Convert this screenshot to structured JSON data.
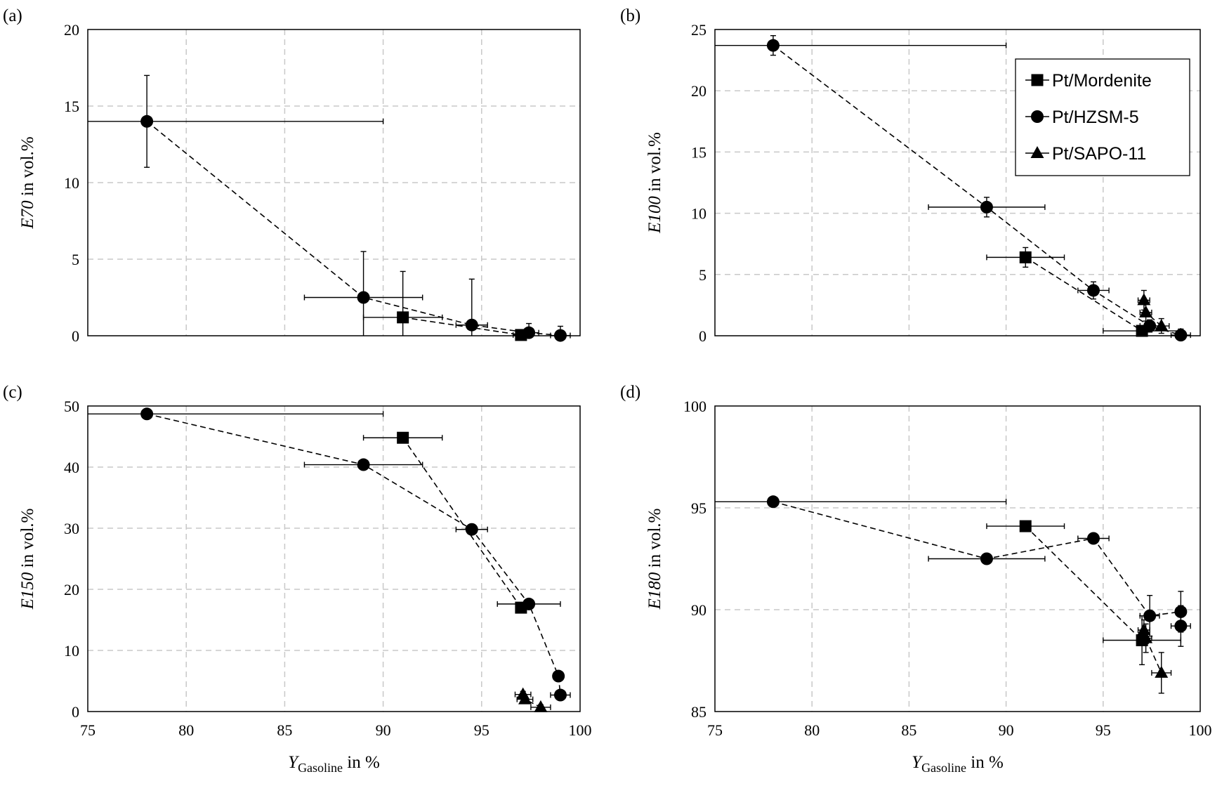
{
  "chart_data": [
    {
      "type": "scatter",
      "panel_label": "(a)",
      "ylabel_italic": "E70",
      "ylabel_rest": " in vol.%",
      "xlabel_main": "",
      "xlabel_sub": "",
      "xlabel_rest": "",
      "xlim": [
        75,
        100
      ],
      "ylim": [
        0,
        20
      ],
      "xticks": [
        75,
        80,
        85,
        90,
        95,
        100
      ],
      "yticks": [
        0,
        5,
        10,
        15,
        20
      ],
      "show_xtick_labels": false,
      "series": [
        {
          "name": "Pt/Mordenite",
          "marker": "square",
          "points": [
            {
              "x": 91,
              "y": 1.2,
              "xerr": 2,
              "yerr": 3
            },
            {
              "x": 97,
              "y": 0.05,
              "xerr": 0.4,
              "yerr": 0
            }
          ]
        },
        {
          "name": "Pt/HZSM-5",
          "marker": "circle",
          "points": [
            {
              "x": 78,
              "y": 14,
              "xerr": 12,
              "yerr": 3
            },
            {
              "x": 89,
              "y": 2.5,
              "xerr": 3,
              "yerr": 3
            },
            {
              "x": 94.5,
              "y": 0.7,
              "xerr": 0.8,
              "yerr": 3
            },
            {
              "x": 97.4,
              "y": 0.2,
              "xerr": 0.5,
              "yerr": 0.6
            },
            {
              "x": 99,
              "y": 0.02,
              "xerr": 0.5,
              "yerr": 0.6
            }
          ]
        },
        {
          "name": "Pt/SAPO-11",
          "marker": "triangle",
          "points": []
        }
      ]
    },
    {
      "type": "scatter",
      "panel_label": "(b)",
      "ylabel_italic": "E100",
      "ylabel_rest": " in vol.%",
      "xlabel_main": "",
      "xlabel_sub": "",
      "xlabel_rest": "",
      "xlim": [
        75,
        100
      ],
      "ylim": [
        0,
        25
      ],
      "xticks": [
        75,
        80,
        85,
        90,
        95,
        100
      ],
      "yticks": [
        0,
        5,
        10,
        15,
        20,
        25
      ],
      "show_xtick_labels": false,
      "legend": {
        "entries": [
          "Pt/Mordenite",
          "Pt/HZSM-5",
          "Pt/SAPO-11"
        ],
        "position": "top-right"
      },
      "series": [
        {
          "name": "Pt/Mordenite",
          "marker": "square",
          "points": [
            {
              "x": 91,
              "y": 6.4,
              "xerr": 2,
              "yerr": 0.8
            },
            {
              "x": 97,
              "y": 0.4,
              "xerr": 2,
              "yerr": 0.3
            }
          ]
        },
        {
          "name": "Pt/HZSM-5",
          "marker": "circle",
          "points": [
            {
              "x": 78,
              "y": 23.7,
              "xerr": 12,
              "yerr": 0.8
            },
            {
              "x": 89,
              "y": 10.5,
              "xerr": 3,
              "yerr": 0.8
            },
            {
              "x": 94.5,
              "y": 3.7,
              "xerr": 0.8,
              "yerr": 0.7
            },
            {
              "x": 97.4,
              "y": 0.8,
              "xerr": 0.5,
              "yerr": 0.5
            },
            {
              "x": 99,
              "y": 0.05,
              "xerr": 0.5,
              "yerr": 0.5
            }
          ]
        },
        {
          "name": "Pt/SAPO-11",
          "marker": "triangle",
          "points": [
            {
              "x": 97.1,
              "y": 2.9,
              "xerr": 0.3,
              "yerr": 0.8
            },
            {
              "x": 97.2,
              "y": 1.9,
              "xerr": 0.3,
              "yerr": 0.7
            },
            {
              "x": 98,
              "y": 0.8,
              "xerr": 0.4,
              "yerr": 0.6
            }
          ]
        }
      ]
    },
    {
      "type": "scatter",
      "panel_label": "(c)",
      "ylabel_italic": "E150",
      "ylabel_rest": " in vol.%",
      "xlabel_main": "Y",
      "xlabel_sub": "Gasoline",
      "xlabel_rest": " in %",
      "xlim": [
        75,
        100
      ],
      "ylim": [
        0,
        50
      ],
      "xticks": [
        75,
        80,
        85,
        90,
        95,
        100
      ],
      "yticks": [
        0,
        10,
        20,
        30,
        40,
        50
      ],
      "show_xtick_labels": true,
      "series": [
        {
          "name": "Pt/Mordenite",
          "marker": "square",
          "points": [
            {
              "x": 91,
              "y": 44.8,
              "xerr": 2,
              "yerr": 0
            },
            {
              "x": 97,
              "y": 17,
              "xerr": 0,
              "yerr": 0
            }
          ]
        },
        {
          "name": "Pt/HZSM-5",
          "marker": "circle",
          "points": [
            {
              "x": 78,
              "y": 48.7,
              "xerr": 12,
              "yerr": 0
            },
            {
              "x": 89,
              "y": 40.4,
              "xerr": 3,
              "yerr": 0
            },
            {
              "x": 94.5,
              "y": 29.8,
              "xerr": 0.8,
              "yerr": 0
            },
            {
              "x": 97.4,
              "y": 17.6,
              "xerr": 1.6,
              "yerr": 0
            },
            {
              "x": 98.9,
              "y": 5.8,
              "xerr": 0,
              "yerr": 0
            },
            {
              "x": 99,
              "y": 2.7,
              "xerr": 0.5,
              "yerr": 0
            }
          ]
        },
        {
          "name": "Pt/SAPO-11",
          "marker": "triangle",
          "points": [
            {
              "x": 97.1,
              "y": 2.8,
              "xerr": 0.4,
              "yerr": 0.5
            },
            {
              "x": 97.2,
              "y": 2.0,
              "xerr": 0.4,
              "yerr": 0.5
            },
            {
              "x": 98,
              "y": 0.7,
              "xerr": 0.5,
              "yerr": 0.4
            }
          ]
        }
      ]
    },
    {
      "type": "scatter",
      "panel_label": "(d)",
      "ylabel_italic": "E180",
      "ylabel_rest": " in vol.%",
      "xlabel_main": "Y",
      "xlabel_sub": "Gasoline",
      "xlabel_rest": " in %",
      "xlim": [
        75,
        100
      ],
      "ylim": [
        85,
        100
      ],
      "xticks": [
        75,
        80,
        85,
        90,
        95,
        100
      ],
      "yticks": [
        85,
        90,
        95,
        100
      ],
      "show_xtick_labels": true,
      "series": [
        {
          "name": "Pt/Mordenite",
          "marker": "square",
          "points": [
            {
              "x": 91,
              "y": 94.1,
              "xerr": 2,
              "yerr": 0
            },
            {
              "x": 97,
              "y": 88.5,
              "xerr": 2,
              "yerr": 1.2
            }
          ]
        },
        {
          "name": "Pt/HZSM-5",
          "marker": "circle",
          "points": [
            {
              "x": 78,
              "y": 95.3,
              "xerr": 12,
              "yerr": 0
            },
            {
              "x": 89,
              "y": 92.5,
              "xerr": 3,
              "yerr": 0
            },
            {
              "x": 94.5,
              "y": 93.5,
              "xerr": 0.8,
              "yerr": 0
            },
            {
              "x": 97.4,
              "y": 89.7,
              "xerr": 0.5,
              "yerr": 1
            },
            {
              "x": 99,
              "y": 89.9,
              "xerr": 0,
              "yerr": 1
            },
            {
              "x": 99,
              "y": 89.2,
              "xerr": 0.5,
              "yerr": 1
            }
          ]
        },
        {
          "name": "Pt/SAPO-11",
          "marker": "triangle",
          "points": [
            {
              "x": 97.1,
              "y": 89.0,
              "xerr": 0.3,
              "yerr": 0.5
            },
            {
              "x": 97.2,
              "y": 88.6,
              "xerr": 0.3,
              "yerr": 0.7
            },
            {
              "x": 98,
              "y": 86.9,
              "xerr": 0.5,
              "yerr": 1
            }
          ]
        }
      ]
    }
  ]
}
